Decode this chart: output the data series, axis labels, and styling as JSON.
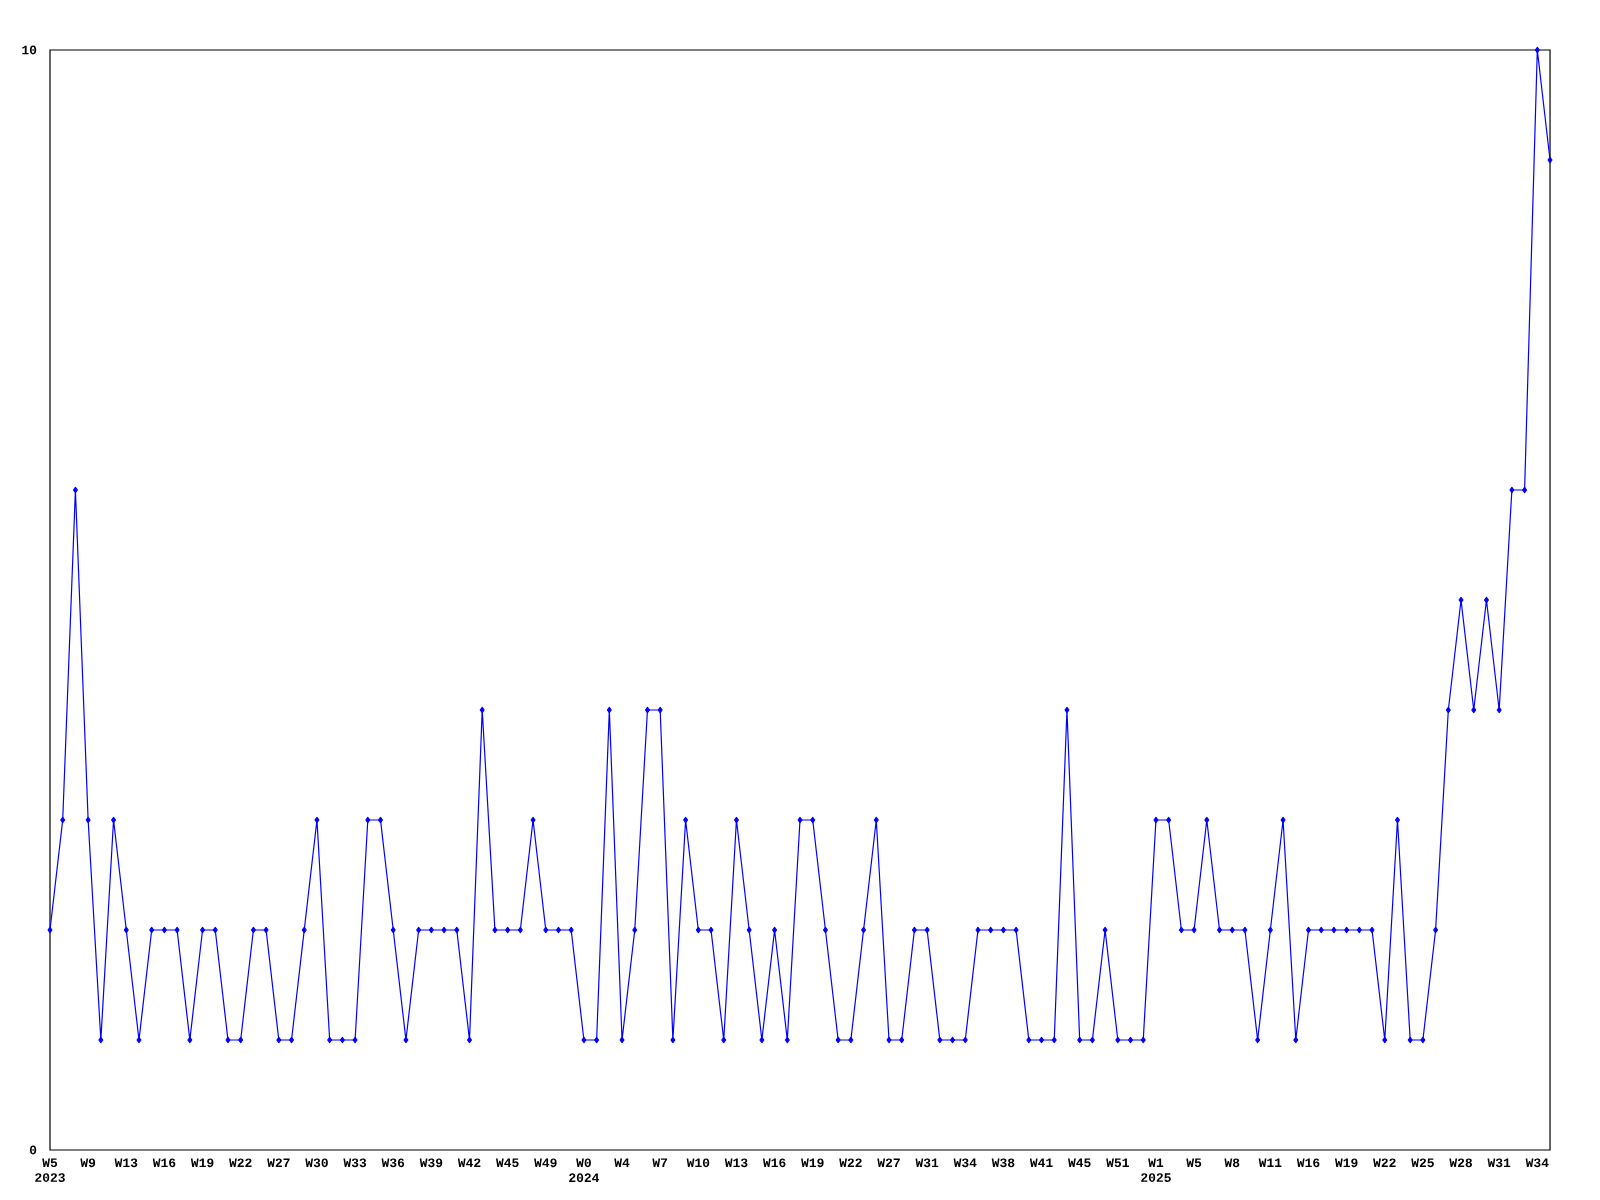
{
  "chart_data": {
    "type": "line",
    "categories": [
      "W5 2023",
      null,
      null,
      "W9",
      null,
      null,
      "W13",
      null,
      null,
      "W16",
      null,
      null,
      "W19",
      null,
      null,
      "W22",
      null,
      null,
      "W27",
      null,
      null,
      "W30",
      null,
      null,
      "W33",
      null,
      null,
      "W36",
      null,
      null,
      "W39",
      null,
      null,
      "W42",
      null,
      null,
      "W45",
      null,
      null,
      "W49",
      null,
      null,
      "W0 2024",
      null,
      null,
      "W4",
      null,
      null,
      "W7",
      null,
      null,
      "W10",
      null,
      null,
      "W13",
      null,
      null,
      "W16",
      null,
      null,
      "W19",
      null,
      null,
      "W22",
      null,
      null,
      "W27",
      null,
      null,
      "W31",
      null,
      null,
      "W34",
      null,
      null,
      "W38",
      null,
      null,
      "W41",
      null,
      null,
      "W45",
      null,
      null,
      "W51",
      null,
      null,
      "W1 2025",
      null,
      null,
      "W5",
      null,
      null,
      "W8",
      null,
      null,
      "W11",
      null,
      null,
      "W16",
      null,
      null,
      "W19",
      null,
      null,
      "W22",
      null,
      null,
      "W25",
      null,
      null,
      "W28",
      null,
      null,
      "W31",
      null,
      null,
      "W34",
      null
    ],
    "values": [
      2,
      3,
      6,
      3,
      1,
      3,
      2,
      1,
      2,
      2,
      2,
      1,
      2,
      2,
      1,
      1,
      2,
      2,
      1,
      1,
      2,
      3,
      1,
      1,
      1,
      3,
      3,
      2,
      1,
      2,
      2,
      2,
      2,
      1,
      4,
      2,
      2,
      2,
      3,
      2,
      2,
      2,
      1,
      1,
      4,
      1,
      2,
      4,
      4,
      1,
      3,
      2,
      2,
      1,
      3,
      2,
      1,
      2,
      1,
      3,
      3,
      2,
      1,
      1,
      2,
      3,
      1,
      1,
      2,
      2,
      1,
      1,
      1,
      2,
      2,
      2,
      2,
      1,
      1,
      1,
      4,
      1,
      1,
      2,
      1,
      1,
      1,
      3,
      3,
      2,
      2,
      3,
      2,
      2,
      2,
      1,
      2,
      3,
      1,
      2,
      2,
      2,
      2,
      2,
      2,
      1,
      3,
      1,
      1,
      2,
      4,
      5,
      4,
      5,
      4,
      6,
      6,
      10,
      9
    ],
    "color": "#0000ff",
    "marker": "diamond",
    "line_style": "solid",
    "ylim": [
      0,
      10
    ],
    "yticks": [
      0,
      10
    ]
  }
}
